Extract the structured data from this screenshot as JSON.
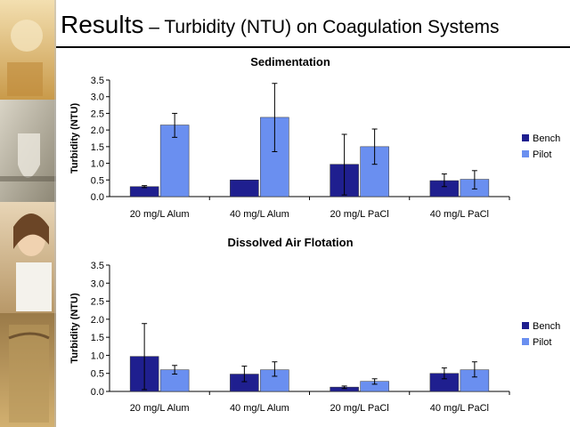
{
  "slide": {
    "title_main": "Results",
    "title_rest": " – Turbidity (NTU) on Coagulation Systems"
  },
  "colors": {
    "bench": "#1f1f8f",
    "pilot": "#6a8ff0",
    "accent_photo": "#c8a060"
  },
  "chart_data": [
    {
      "type": "bar",
      "title": "Sedimentation",
      "ylabel": "Turbidity (NTU)",
      "xlabel": "",
      "categories": [
        "20 mg/L Alum",
        "40 mg/L Alum",
        "20 mg/L PaCl",
        "40 mg/L PaCl"
      ],
      "ylim": [
        0,
        3.5
      ],
      "yticks": [
        "0.0",
        "0.5",
        "1.0",
        "1.5",
        "2.0",
        "2.5",
        "3.0",
        "3.5"
      ],
      "legend_position": "right",
      "grid": false,
      "series": [
        {
          "name": "Bench",
          "values": [
            0.3,
            0.5,
            0.97,
            0.48
          ],
          "err_low": [
            0.27,
            0.5,
            0.05,
            0.3
          ],
          "err_high": [
            0.33,
            0.5,
            1.87,
            0.68
          ]
        },
        {
          "name": "Pilot",
          "values": [
            2.15,
            2.38,
            1.5,
            0.52
          ],
          "err_low": [
            1.78,
            1.35,
            0.97,
            0.23
          ],
          "err_high": [
            2.5,
            3.4,
            2.03,
            0.78
          ]
        }
      ]
    },
    {
      "type": "bar",
      "title": "Dissolved Air Flotation",
      "ylabel": "Turbidity (NTU)",
      "xlabel": "",
      "categories": [
        "20 mg/L Alum",
        "40 mg/L Alum",
        "20 mg/L PaCl",
        "40 mg/L PaCl"
      ],
      "ylim": [
        0,
        3.5
      ],
      "yticks": [
        "0.0",
        "0.5",
        "1.0",
        "1.5",
        "2.0",
        "2.5",
        "3.0",
        "3.5"
      ],
      "legend_position": "right",
      "grid": false,
      "series": [
        {
          "name": "Bench",
          "values": [
            0.97,
            0.48,
            0.12,
            0.5
          ],
          "err_low": [
            0.05,
            0.27,
            0.08,
            0.35
          ],
          "err_high": [
            1.88,
            0.7,
            0.15,
            0.65
          ]
        },
        {
          "name": "Pilot",
          "values": [
            0.6,
            0.6,
            0.28,
            0.6
          ],
          "err_low": [
            0.48,
            0.42,
            0.2,
            0.4
          ],
          "err_high": [
            0.72,
            0.82,
            0.35,
            0.82
          ]
        }
      ]
    }
  ]
}
